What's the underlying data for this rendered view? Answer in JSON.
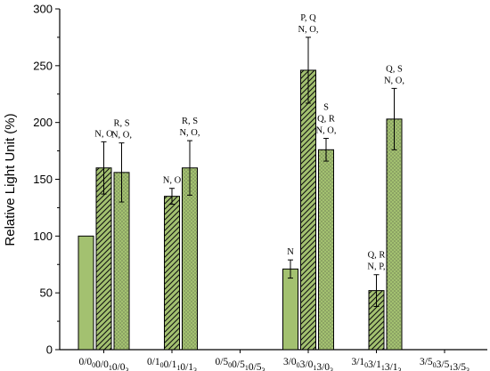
{
  "chart_data": {
    "type": "bar",
    "title": "",
    "xlabel": "",
    "ylabel": "Relative Light Unit (%)",
    "ylim": [
      0,
      300
    ],
    "yticks": [
      0,
      50,
      100,
      150,
      200,
      250,
      300
    ],
    "colors": {
      "bar_fill": "#a3c170",
      "pattern_ink": "#111111"
    },
    "fill_styles": [
      "solid",
      "hatched",
      "dotted"
    ],
    "groups": [
      {
        "labels": [
          {
            "base": "0/0",
            "sub": "0"
          },
          {
            "base": "0/0",
            "sub": "1"
          },
          {
            "base": "0/0",
            "sub": "3"
          }
        ]
      },
      {
        "labels": [
          {
            "base": "0/1",
            "sub": "0"
          },
          {
            "base": "0/1",
            "sub": "1"
          },
          {
            "base": "0/1",
            "sub": "3"
          }
        ]
      },
      {
        "labels": [
          {
            "base": "0/5",
            "sub": "0"
          },
          {
            "base": "0/5",
            "sub": "1"
          },
          {
            "base": "0/5",
            "sub": "3"
          }
        ]
      },
      {
        "labels": [
          {
            "base": "3/0",
            "sub": "0"
          },
          {
            "base": "3/0",
            "sub": "1"
          },
          {
            "base": "3/0",
            "sub": "3"
          }
        ]
      },
      {
        "labels": [
          {
            "base": "3/1",
            "sub": "0"
          },
          {
            "base": "3/1",
            "sub": "1"
          },
          {
            "base": "3/1",
            "sub": "3"
          }
        ]
      },
      {
        "labels": [
          {
            "base": "3/5",
            "sub": "0"
          },
          {
            "base": "3/5",
            "sub": "1"
          },
          {
            "base": "3/5",
            "sub": "3"
          }
        ]
      }
    ],
    "bars": [
      {
        "group": 0,
        "slot": 0,
        "value": 100,
        "error": null,
        "annotation": []
      },
      {
        "group": 0,
        "slot": 1,
        "value": 160,
        "error": 23,
        "annotation": [
          "N, O"
        ]
      },
      {
        "group": 0,
        "slot": 2,
        "value": 156,
        "error": 26,
        "annotation": [
          "R, S",
          "N, O,"
        ]
      },
      {
        "group": 1,
        "slot": 1,
        "value": 135,
        "error": 7,
        "annotation": [
          "N, O"
        ]
      },
      {
        "group": 1,
        "slot": 2,
        "value": 160,
        "error": 24,
        "annotation": [
          "R, S",
          "N, O,"
        ]
      },
      {
        "group": 3,
        "slot": 0,
        "value": 71,
        "error": 8,
        "annotation": [
          "N"
        ]
      },
      {
        "group": 3,
        "slot": 1,
        "value": 246,
        "error": 29,
        "annotation": [
          "P, Q",
          "N, O,"
        ]
      },
      {
        "group": 3,
        "slot": 2,
        "value": 176,
        "error": 10,
        "annotation": [
          "S",
          "Q, R",
          "N, O,"
        ]
      },
      {
        "group": 4,
        "slot": 1,
        "value": 52,
        "error": 14,
        "annotation": [
          "Q, R",
          "N, P,"
        ]
      },
      {
        "group": 4,
        "slot": 2,
        "value": 203,
        "error": 27,
        "annotation": [
          "Q, S",
          "N, O,"
        ]
      }
    ]
  }
}
